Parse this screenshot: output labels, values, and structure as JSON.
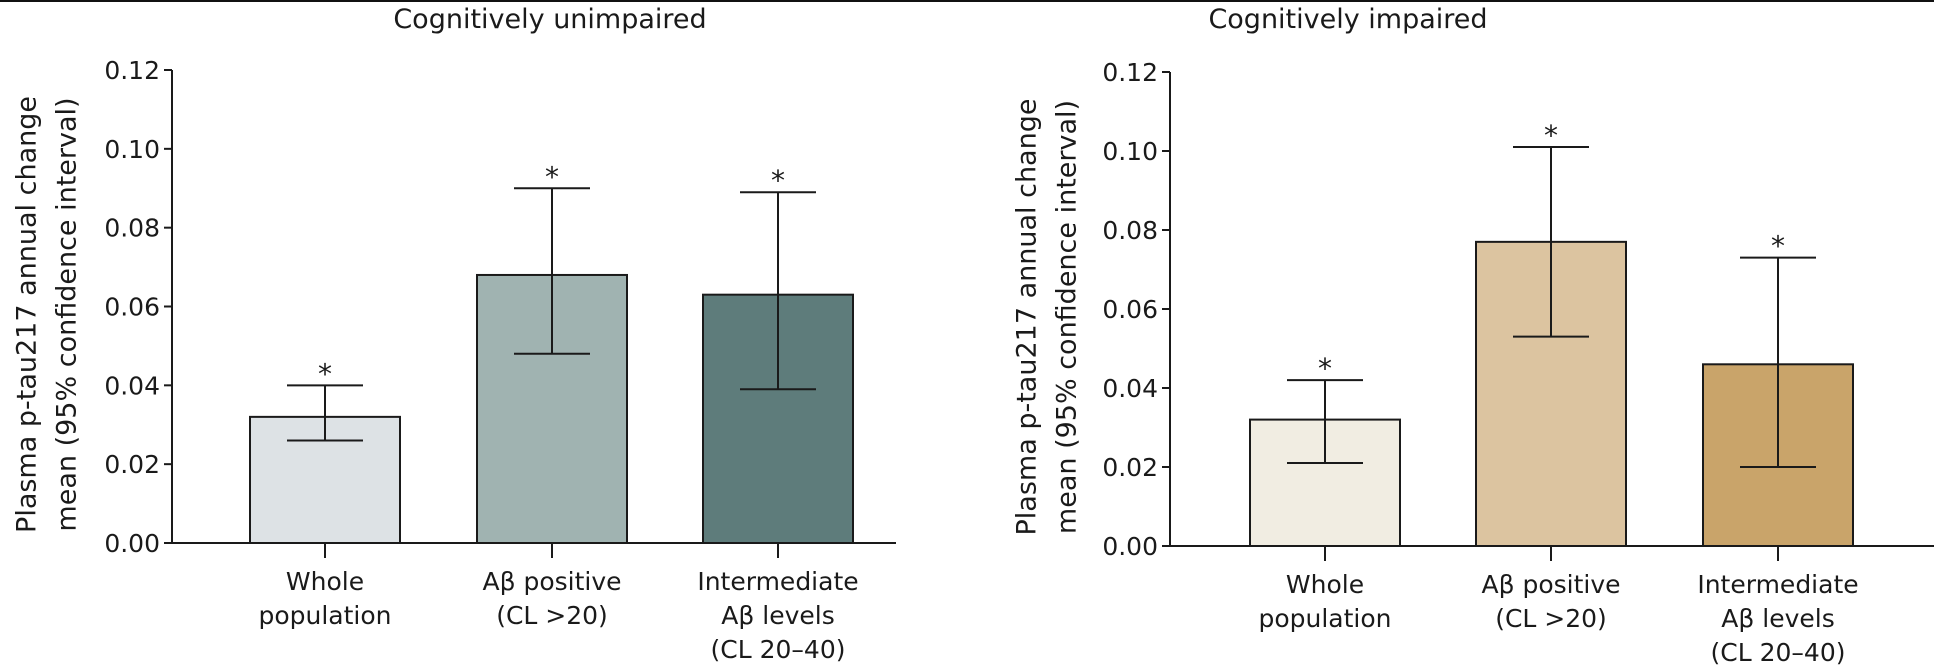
{
  "chart_data": [
    {
      "type": "bar",
      "title": "Cognitively unimpaired",
      "ylabel_lines": [
        "Plasma p-tau217 annual change",
        "mean (95% confidence interval)"
      ],
      "xlabel": "",
      "ylim": [
        0,
        0.12
      ],
      "yticks": [
        "0.00",
        "0.02",
        "0.04",
        "0.06",
        "0.08",
        "0.10",
        "0.12"
      ],
      "ytick_values": [
        0,
        0.02,
        0.04,
        0.06,
        0.08,
        0.1,
        0.12
      ],
      "grid": false,
      "categories": [
        [
          "Whole",
          "population"
        ],
        [
          "Aβ positive",
          "(CL >20)"
        ],
        [
          "Intermediate",
          "Aβ levels",
          "(CL 20–40)"
        ]
      ],
      "values": [
        0.032,
        0.068,
        0.063
      ],
      "ci_lower": [
        0.026,
        0.048,
        0.039
      ],
      "ci_upper": [
        0.04,
        0.09,
        0.089
      ],
      "significance": [
        "*",
        "*",
        "*"
      ],
      "colors": [
        "#dde2e5",
        "#a0b3b1",
        "#5e7c7b"
      ]
    },
    {
      "type": "bar",
      "title": "Cognitively impaired",
      "ylabel_lines": [
        "Plasma p-tau217 annual change",
        "mean (95% confidence interval)"
      ],
      "xlabel": "",
      "ylim": [
        0,
        0.12
      ],
      "yticks": [
        "0.00",
        "0.02",
        "0.04",
        "0.06",
        "0.08",
        "0.10",
        "0.12"
      ],
      "ytick_values": [
        0,
        0.02,
        0.04,
        0.06,
        0.08,
        0.1,
        0.12
      ],
      "grid": false,
      "categories": [
        [
          "Whole",
          "population"
        ],
        [
          "Aβ positive",
          "(CL >20)"
        ],
        [
          "Intermediate",
          "Aβ levels",
          "(CL 20–40)"
        ]
      ],
      "values": [
        0.032,
        0.077,
        0.046
      ],
      "ci_lower": [
        0.021,
        0.053,
        0.02
      ],
      "ci_upper": [
        0.042,
        0.101,
        0.073
      ],
      "significance": [
        "*",
        "*",
        "*"
      ],
      "colors": [
        "#f1ede2",
        "#dcc4a0",
        "#c9a46a"
      ]
    }
  ]
}
